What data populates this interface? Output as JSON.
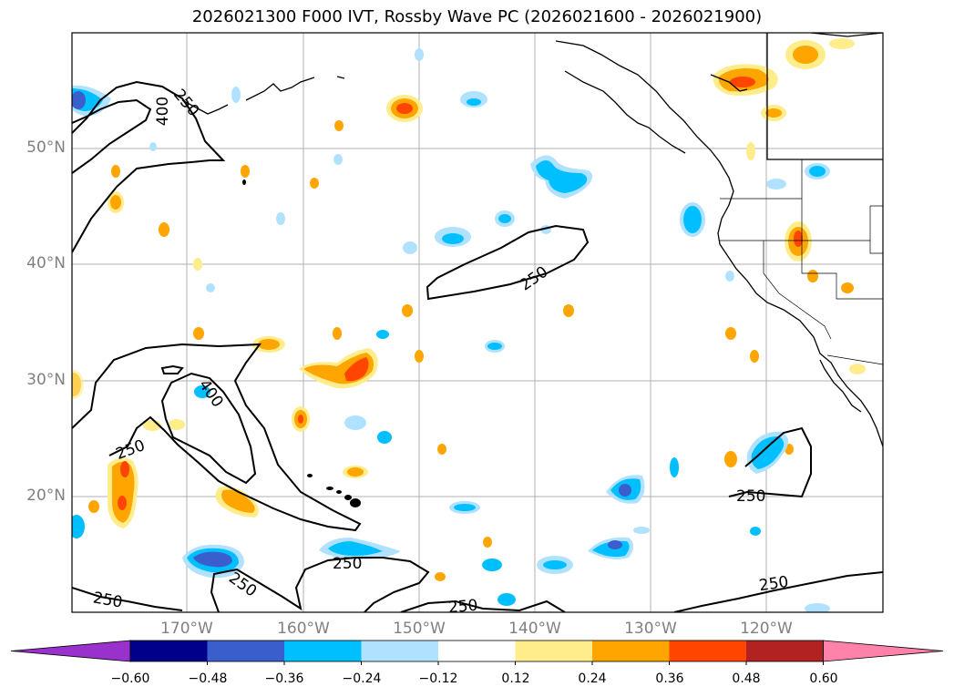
{
  "title": "2026021300 F000 IVT, Rossby Wave PC (2026021600 - 2026021900)",
  "lat_labels": [
    "50°N",
    "40°N",
    "30°N",
    "20°N"
  ],
  "lon_labels": [
    "170°W",
    "160°W",
    "150°W",
    "140°W",
    "130°W",
    "120°W"
  ],
  "contour_labels": [
    "400",
    "250",
    "250",
    "400",
    "250",
    "250",
    "250",
    "250",
    "250",
    "250"
  ],
  "colorbar": {
    "colors": [
      "#9932cc",
      "#00008b",
      "#3a5fcd",
      "#00bfff",
      "#b0e2ff",
      "#ffffff",
      "#ffec8b",
      "#ffa500",
      "#ff4500",
      "#b22222",
      "#ff82ab"
    ],
    "labels": [
      "−0.60",
      "−0.48",
      "−0.36",
      "−0.24",
      "−0.12",
      "0.12",
      "0.24",
      "0.36",
      "0.48",
      "0.60"
    ]
  },
  "colors": {
    "ocean": "#ffffff",
    "grid": "#b0b0b0",
    "coast": "#000000",
    "axis_label": "#808080"
  }
}
